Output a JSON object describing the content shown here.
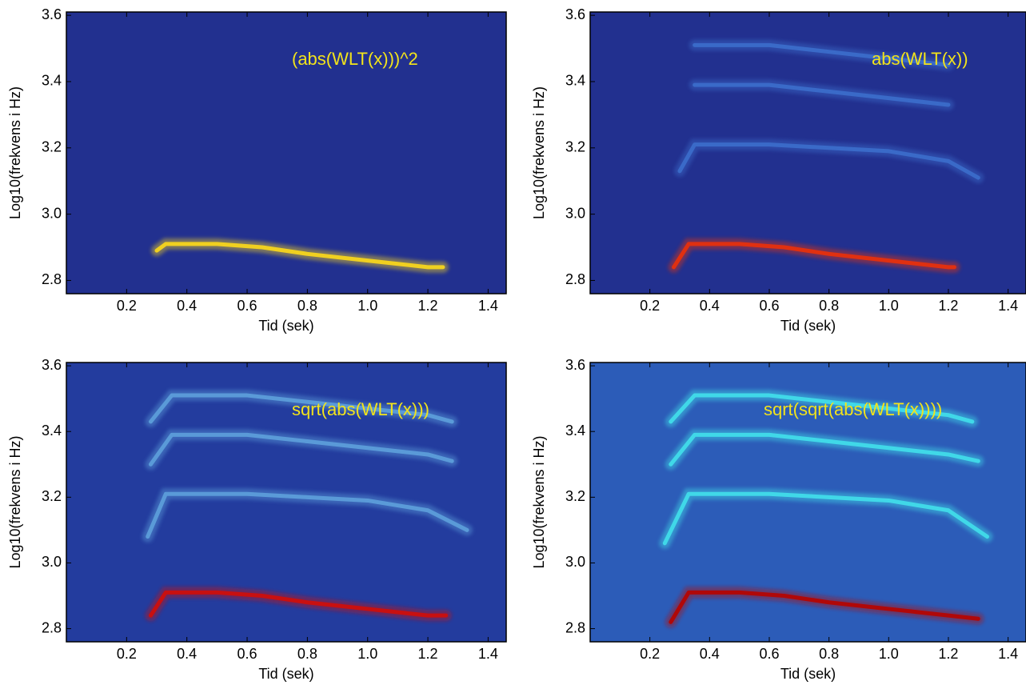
{
  "chart_data": [
    {
      "type": "spectrogram",
      "annotation": "(abs(WLT(x)))^2",
      "xlabel": "Tid (sek)",
      "ylabel": "Log10(frekvens i Hz)",
      "background": "#22308f",
      "xlim": [
        0,
        1.46
      ],
      "ylim": [
        2.76,
        3.61
      ],
      "xticks": [
        0.2,
        0.4,
        0.6,
        0.8,
        {
          "value": 1,
          "label": "1.0"
        },
        1.2,
        1.4
      ],
      "yticks": [
        2.8,
        {
          "value": 3,
          "label": "3.0"
        },
        3.2,
        3.4,
        3.6
      ],
      "ridges": [
        {
          "color": "#f0d020",
          "x": [
            0.3,
            0.33,
            0.5,
            0.65,
            0.8,
            1.0,
            1.2,
            1.25
          ],
          "values": [
            2.89,
            2.91,
            2.91,
            2.9,
            2.88,
            2.86,
            2.84,
            2.84
          ]
        }
      ]
    },
    {
      "type": "spectrogram",
      "annotation": "abs(WLT(x))",
      "xlabel": "Tid (sek)",
      "ylabel": "Log10(frekvens i Hz)",
      "background": "#22308f",
      "xlim": [
        0,
        1.46
      ],
      "ylim": [
        2.76,
        3.61
      ],
      "xticks": [
        0.2,
        0.4,
        0.6,
        0.8,
        {
          "value": 1,
          "label": "1.0"
        },
        1.2,
        1.4
      ],
      "yticks": [
        2.8,
        {
          "value": 3,
          "label": "3.0"
        },
        3.2,
        3.4,
        3.6
      ],
      "ridges": [
        {
          "color": "#e03010",
          "x": [
            0.28,
            0.33,
            0.5,
            0.65,
            0.8,
            1.0,
            1.2,
            1.22
          ],
          "values": [
            2.84,
            2.91,
            2.91,
            2.9,
            2.88,
            2.86,
            2.84,
            2.84
          ]
        },
        {
          "color": "#3a6ac8",
          "x": [
            0.3,
            0.35,
            0.6,
            0.8,
            1.0,
            1.2,
            1.3
          ],
          "values": [
            3.13,
            3.21,
            3.21,
            3.2,
            3.19,
            3.16,
            3.11
          ]
        },
        {
          "color": "#3a6ac8",
          "x": [
            0.35,
            0.6,
            0.8,
            1.0,
            1.2
          ],
          "values": [
            3.39,
            3.39,
            3.37,
            3.35,
            3.33
          ]
        },
        {
          "color": "#3a6ac8",
          "x": [
            0.35,
            0.6,
            0.8,
            1.0,
            1.2
          ],
          "values": [
            3.51,
            3.51,
            3.49,
            3.47,
            3.45
          ]
        }
      ]
    },
    {
      "type": "spectrogram",
      "annotation": "sqrt(abs(WLT(x)))",
      "xlabel": "Tid (sek)",
      "ylabel": "Log10(frekvens i Hz)",
      "background": "#233c9e",
      "xlim": [
        0,
        1.46
      ],
      "ylim": [
        2.76,
        3.61
      ],
      "xticks": [
        0.2,
        0.4,
        0.6,
        0.8,
        {
          "value": 1,
          "label": "1.0"
        },
        1.2,
        1.4
      ],
      "yticks": [
        2.8,
        {
          "value": 3,
          "label": "3.0"
        },
        3.2,
        3.4,
        3.6
      ],
      "ridges": [
        {
          "color": "#c81010",
          "x": [
            0.28,
            0.33,
            0.5,
            0.65,
            0.8,
            1.0,
            1.2,
            1.26
          ],
          "values": [
            2.84,
            2.91,
            2.91,
            2.9,
            2.88,
            2.86,
            2.84,
            2.84
          ]
        },
        {
          "color": "#5a9ad8",
          "x": [
            0.27,
            0.33,
            0.6,
            0.8,
            1.0,
            1.2,
            1.33
          ],
          "values": [
            3.08,
            3.21,
            3.21,
            3.2,
            3.19,
            3.16,
            3.1
          ]
        },
        {
          "color": "#5a9ad8",
          "x": [
            0.28,
            0.35,
            0.6,
            0.8,
            1.0,
            1.2,
            1.28
          ],
          "values": [
            3.3,
            3.39,
            3.39,
            3.37,
            3.35,
            3.33,
            3.31
          ]
        },
        {
          "color": "#5a9ad8",
          "x": [
            0.28,
            0.35,
            0.6,
            0.8,
            1.0,
            1.2,
            1.28
          ],
          "values": [
            3.43,
            3.51,
            3.51,
            3.49,
            3.47,
            3.45,
            3.43
          ]
        }
      ]
    },
    {
      "type": "spectrogram",
      "annotation": "sqrt(sqrt(abs(WLT(x))))",
      "xlabel": "Tid (sek)",
      "ylabel": "Log10(frekvens i Hz)",
      "background": "#2c5cb8",
      "xlim": [
        0,
        1.46
      ],
      "ylim": [
        2.76,
        3.61
      ],
      "xticks": [
        0.2,
        0.4,
        0.6,
        0.8,
        {
          "value": 1,
          "label": "1.0"
        },
        1.2,
        1.4
      ],
      "yticks": [
        2.8,
        {
          "value": 3,
          "label": "3.0"
        },
        3.2,
        3.4,
        3.6
      ],
      "ridges": [
        {
          "color": "#b00808",
          "x": [
            0.27,
            0.33,
            0.5,
            0.65,
            0.8,
            1.0,
            1.2,
            1.3
          ],
          "values": [
            2.82,
            2.91,
            2.91,
            2.9,
            2.88,
            2.86,
            2.84,
            2.83
          ]
        },
        {
          "color": "#40d8e8",
          "x": [
            0.25,
            0.33,
            0.6,
            0.8,
            1.0,
            1.2,
            1.33
          ],
          "values": [
            3.06,
            3.21,
            3.21,
            3.2,
            3.19,
            3.16,
            3.08
          ]
        },
        {
          "color": "#40d8e8",
          "x": [
            0.27,
            0.35,
            0.6,
            0.8,
            1.0,
            1.2,
            1.3
          ],
          "values": [
            3.3,
            3.39,
            3.39,
            3.37,
            3.35,
            3.33,
            3.31
          ]
        },
        {
          "color": "#40d8e8",
          "x": [
            0.27,
            0.35,
            0.6,
            0.8,
            1.0,
            1.2,
            1.28
          ],
          "values": [
            3.43,
            3.51,
            3.51,
            3.49,
            3.47,
            3.45,
            3.43
          ]
        }
      ]
    }
  ]
}
